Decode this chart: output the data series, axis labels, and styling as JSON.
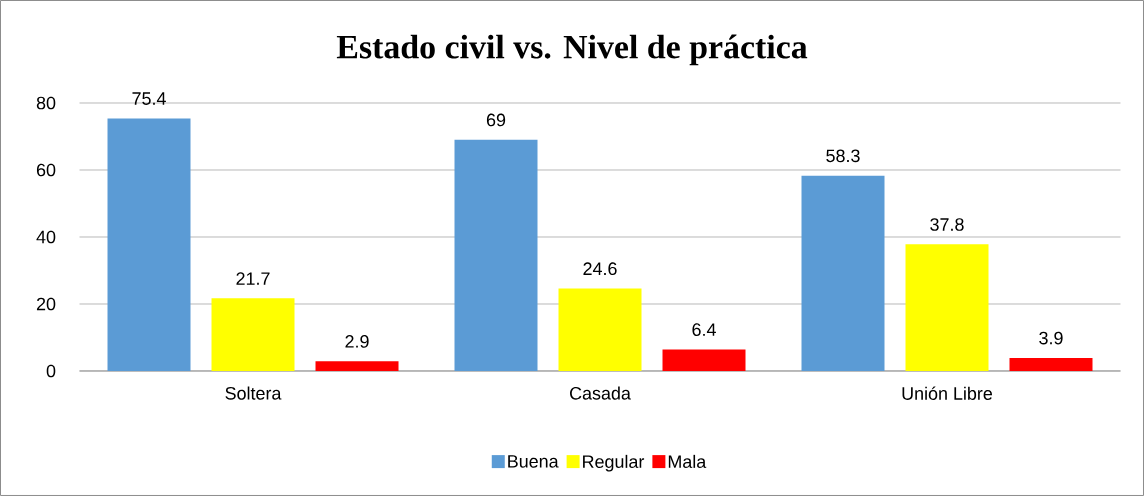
{
  "chart_data": {
    "type": "bar",
    "title": "Estado civil vs. Nivel de práctica",
    "categories": [
      "Soltera",
      "Casada",
      "Unión Libre"
    ],
    "series": [
      {
        "name": "Buena",
        "color": "#5b9bd5",
        "values": [
          75.4,
          69,
          58.3
        ]
      },
      {
        "name": "Regular",
        "color": "#ffff00",
        "values": [
          21.7,
          24.6,
          37.8
        ]
      },
      {
        "name": "Mala",
        "color": "#ff0000",
        "values": [
          2.9,
          6.4,
          3.9
        ]
      }
    ],
    "ylim": [
      0,
      80
    ],
    "yticks": [
      0,
      20,
      40,
      60,
      80
    ],
    "grid": "y",
    "legend": "bottom",
    "data_labels": true
  }
}
